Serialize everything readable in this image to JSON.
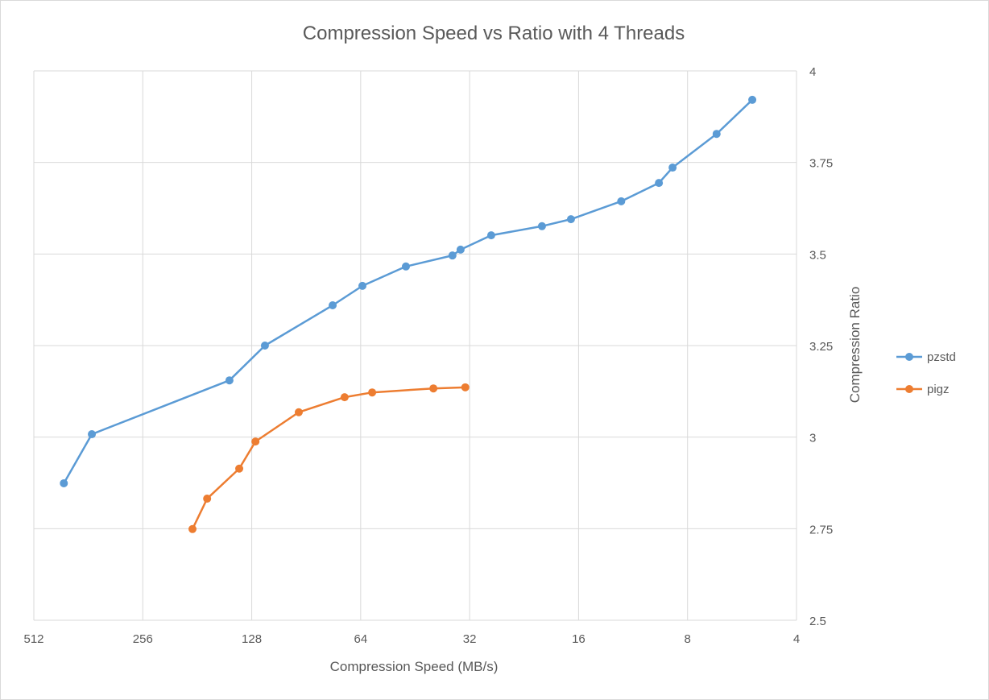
{
  "chart_data": {
    "type": "line",
    "title": "Compression Speed vs Ratio with 4 Threads",
    "xlabel": "Compression Speed (MB/s)",
    "ylabel": "Compression Ratio",
    "x_scale": "log2",
    "x_reversed": true,
    "xlim": [
      512,
      4
    ],
    "ylim": [
      2.5,
      4
    ],
    "x_ticks": [
      "512",
      "256",
      "128",
      "64",
      "32",
      "16",
      "8",
      "4"
    ],
    "y_ticks": [
      "2.5",
      "2.75",
      "3",
      "3.25",
      "3.5",
      "3.75",
      "4"
    ],
    "y_axis_side": "right",
    "grid": true,
    "legend_position": "right",
    "series": [
      {
        "name": "pzstd",
        "color": "#5B9BD5",
        "x": [
          423,
          354,
          147.5,
          117.7,
          76.5,
          63.3,
          48,
          35.7,
          33.9,
          27.9,
          20.2,
          16.8,
          12.2,
          9.6,
          8.8,
          6.65,
          5.3
        ],
        "y": [
          2.874,
          3.008,
          3.155,
          3.25,
          3.36,
          3.413,
          3.466,
          3.496,
          3.512,
          3.551,
          3.576,
          3.595,
          3.644,
          3.694,
          3.736,
          3.828,
          3.921
        ]
      },
      {
        "name": "pigz",
        "color": "#ED7D31",
        "x": [
          186.6,
          170,
          138.6,
          125,
          94.9,
          70.9,
          59.5,
          40.3,
          32.9
        ],
        "y": [
          2.749,
          2.832,
          2.914,
          2.988,
          3.068,
          3.109,
          3.122,
          3.133,
          3.136
        ]
      }
    ]
  }
}
